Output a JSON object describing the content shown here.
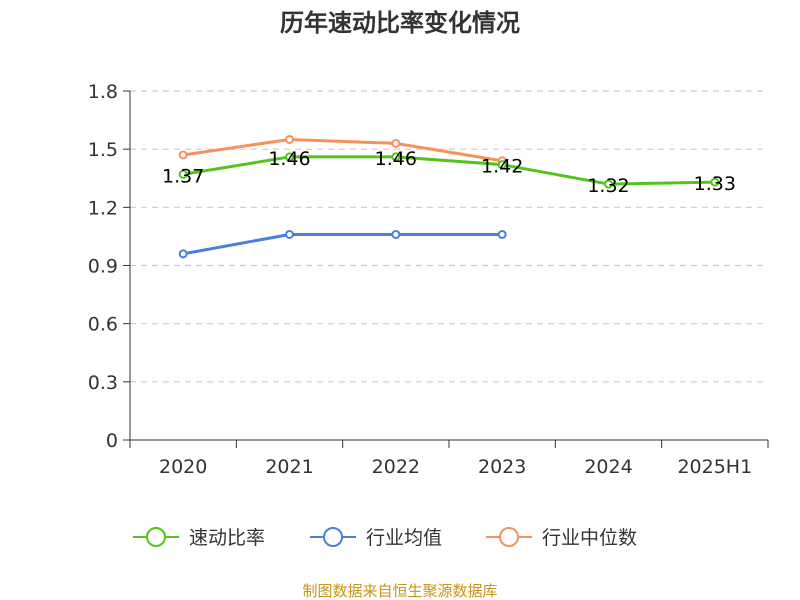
{
  "chart_data": {
    "type": "line",
    "title": "历年速动比率变化情况",
    "categories": [
      "2020",
      "2021",
      "2022",
      "2023",
      "2024",
      "2025H1"
    ],
    "ylim": [
      0,
      1.8
    ],
    "yticks": [
      "0",
      "0.3",
      "0.6",
      "0.9",
      "1.2",
      "1.5",
      "1.8"
    ],
    "grid": true,
    "legend_position": "bottom",
    "series": [
      {
        "name": "速动比率",
        "color": "#52c41a",
        "values": [
          1.37,
          1.46,
          1.46,
          1.42,
          1.32,
          1.33
        ],
        "show_labels": true
      },
      {
        "name": "行业均值",
        "color": "#4a7fdb",
        "values": [
          0.96,
          1.06,
          1.06,
          1.06,
          null,
          null
        ],
        "show_labels": false
      },
      {
        "name": "行业中位数",
        "color": "#f4915c",
        "values": [
          1.47,
          1.55,
          1.53,
          1.44,
          null,
          null
        ],
        "show_labels": false
      }
    ],
    "data_labels": [
      "1.37",
      "1.46",
      "1.46",
      "1.42",
      "1.32",
      "1.33"
    ]
  },
  "source_text": "制图数据来自恒生聚源数据库",
  "source_color": "#c8941a"
}
